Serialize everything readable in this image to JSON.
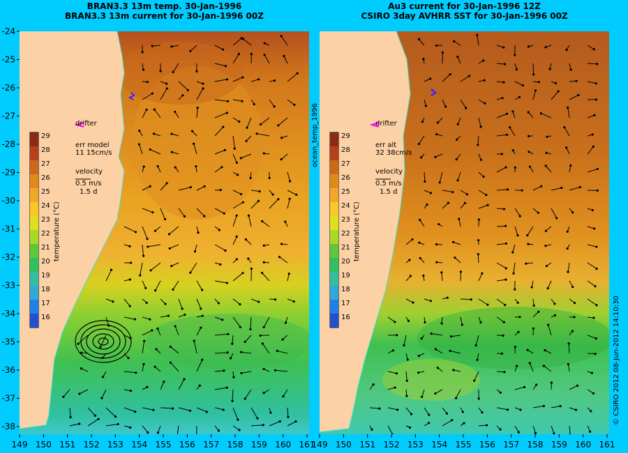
{
  "panels": [
    {
      "title_line1": "BRAN3.3 13m temp. 30-Jan-1996",
      "title_line2": "BRAN3.3 13m current for 30-Jan-1996 00Z",
      "err_label": "err model",
      "err_value": "11 15cm/s",
      "velocity_label": "velocity",
      "velocity_scale": "0.5 m/s",
      "velocity_time": "1.5 d",
      "drifter_label": "drifter",
      "colorbar_label": "temperature (°C)"
    },
    {
      "title_line1": "Au3 current for 30-Jan-1996 12Z",
      "title_line2": "CSIRO 3day AVHRR SST for 30-Jan-1996 00Z",
      "err_label": "err alt",
      "err_value": "32 38cm/s",
      "velocity_label": "velocity",
      "velocity_scale": "0.5 m/s",
      "velocity_time": "1.5 d",
      "drifter_label": "drifter",
      "colorbar_label": "temperature (°C)"
    }
  ],
  "side_label": "ocean_temp_1996",
  "copyright": "© CSIRO 2012  08-Jun-2012 14:10:30",
  "lat_ticks": [
    "-24",
    "-25",
    "-26",
    "-27",
    "-28",
    "-29",
    "-30",
    "-31",
    "-32",
    "-33",
    "-34",
    "-35",
    "-36",
    "-37",
    "-38"
  ],
  "lon_ticks": [
    "149",
    "150",
    "151",
    "152",
    "153",
    "154",
    "155",
    "156",
    "157",
    "158",
    "159",
    "160",
    "161"
  ],
  "colorbar_ticks": [
    "29",
    "28",
    "27",
    "26",
    "25",
    "24",
    "23",
    "22",
    "21",
    "20",
    "19",
    "18",
    "17",
    "16"
  ],
  "colors": {
    "background": "#00ccff",
    "land": "#fcd1a5",
    "coast_line": "#40e0d0",
    "drifter": "#ff00ff",
    "drifter_track": "#4020ff"
  }
}
